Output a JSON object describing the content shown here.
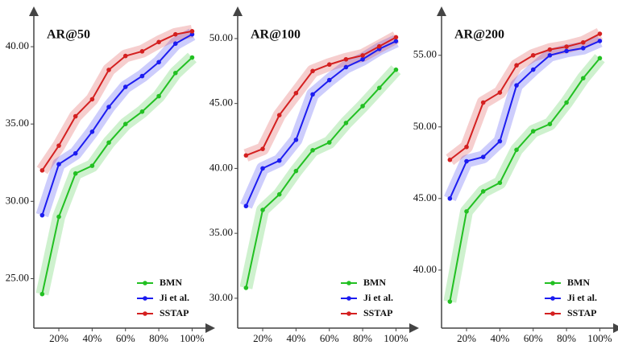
{
  "chart_data": [
    {
      "type": "line",
      "title": "AR@50",
      "x": [
        10,
        20,
        30,
        40,
        50,
        60,
        70,
        80,
        90,
        100
      ],
      "xlim": [
        5,
        108
      ],
      "xticks": [
        {
          "value": 20,
          "label": "20%"
        },
        {
          "value": 40,
          "label": "40%"
        },
        {
          "value": 60,
          "label": "60%"
        },
        {
          "value": 80,
          "label": "80%"
        },
        {
          "value": 100,
          "label": "100%"
        }
      ],
      "ylim": [
        21.8,
        42.5
      ],
      "yticks": [
        {
          "value": 25,
          "label": "25.00"
        },
        {
          "value": 30,
          "label": "30.00"
        },
        {
          "value": 35,
          "label": "35.00"
        },
        {
          "value": 40,
          "label": "40.00"
        }
      ],
      "legend": "lower right",
      "series": [
        {
          "name": "BMN",
          "color": "#22c022",
          "values": [
            24.0,
            29.0,
            31.8,
            32.3,
            33.8,
            35.0,
            35.8,
            36.8,
            38.3,
            39.3
          ]
        },
        {
          "name": "Ji et al.",
          "color": "#1c1cf0",
          "values": [
            29.1,
            32.4,
            33.1,
            34.5,
            36.1,
            37.4,
            38.1,
            39.0,
            40.2,
            40.8
          ]
        },
        {
          "name": "SSTAP",
          "color": "#d42020",
          "values": [
            32.0,
            33.6,
            35.5,
            36.6,
            38.5,
            39.4,
            39.7,
            40.3,
            40.8,
            41.0
          ]
        }
      ]
    },
    {
      "type": "line",
      "title": "AR@100",
      "x": [
        10,
        20,
        30,
        40,
        50,
        60,
        70,
        80,
        90,
        100
      ],
      "xlim": [
        5,
        108
      ],
      "xticks": [
        {
          "value": 20,
          "label": "20%"
        },
        {
          "value": 40,
          "label": "40%"
        },
        {
          "value": 60,
          "label": "60%"
        },
        {
          "value": 80,
          "label": "80%"
        },
        {
          "value": 100,
          "label": "100%"
        }
      ],
      "ylim": [
        27.7,
        52.35
      ],
      "yticks": [
        {
          "value": 30,
          "label": "30.00"
        },
        {
          "value": 35,
          "label": "35.00"
        },
        {
          "value": 40,
          "label": "40.00"
        },
        {
          "value": 45,
          "label": "45.00"
        },
        {
          "value": 50,
          "label": "50.00"
        }
      ],
      "legend": "lower right",
      "series": [
        {
          "name": "BMN",
          "color": "#22c022",
          "values": [
            30.8,
            36.8,
            38.0,
            39.8,
            41.4,
            42.0,
            43.5,
            44.8,
            46.2,
            47.6
          ]
        },
        {
          "name": "Ji et al.",
          "color": "#1c1cf0",
          "values": [
            37.1,
            40.0,
            40.6,
            42.2,
            45.7,
            46.8,
            47.8,
            48.4,
            49.2,
            49.8
          ]
        },
        {
          "name": "SSTAP",
          "color": "#d42020",
          "values": [
            41.0,
            41.5,
            44.1,
            45.8,
            47.5,
            48.0,
            48.4,
            48.7,
            49.4,
            50.1
          ]
        }
      ]
    },
    {
      "type": "line",
      "title": "AR@200",
      "x": [
        10,
        20,
        30,
        40,
        50,
        60,
        70,
        80,
        90,
        100
      ],
      "xlim": [
        5,
        108
      ],
      "xticks": [
        {
          "value": 20,
          "label": "20%"
        },
        {
          "value": 40,
          "label": "40%"
        },
        {
          "value": 60,
          "label": "60%"
        },
        {
          "value": 80,
          "label": "80%"
        },
        {
          "value": 100,
          "label": "100%"
        }
      ],
      "ylim": [
        35.95,
        58.3
      ],
      "yticks": [
        {
          "value": 40,
          "label": "40.00"
        },
        {
          "value": 45,
          "label": "45.00"
        },
        {
          "value": 50,
          "label": "50.00"
        },
        {
          "value": 55,
          "label": "55.00"
        }
      ],
      "legend": "lower right",
      "series": [
        {
          "name": "BMN",
          "color": "#22c022",
          "values": [
            37.8,
            44.1,
            45.5,
            46.1,
            48.4,
            49.7,
            50.2,
            51.7,
            53.4,
            54.8
          ]
        },
        {
          "name": "Ji et al.",
          "color": "#1c1cf0",
          "values": [
            45.0,
            47.6,
            47.9,
            49.0,
            52.9,
            54.0,
            55.0,
            55.3,
            55.5,
            56.0
          ]
        },
        {
          "name": "SSTAP",
          "color": "#d42020",
          "values": [
            47.7,
            48.6,
            51.7,
            52.4,
            54.3,
            55.0,
            55.4,
            55.6,
            55.9,
            56.5
          ]
        }
      ]
    }
  ]
}
